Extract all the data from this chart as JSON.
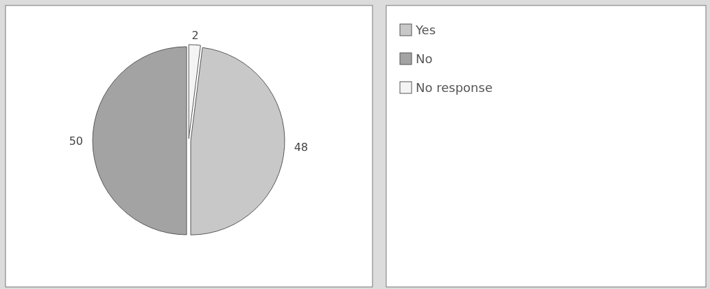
{
  "chart_data": {
    "type": "pie",
    "categories": [
      "Yes",
      "No",
      "No response"
    ],
    "values": [
      48,
      50,
      2
    ],
    "colors": [
      "#c8c8c8",
      "#a3a3a3",
      "#f4f4f4"
    ],
    "data_labels": true,
    "legend": "right"
  }
}
